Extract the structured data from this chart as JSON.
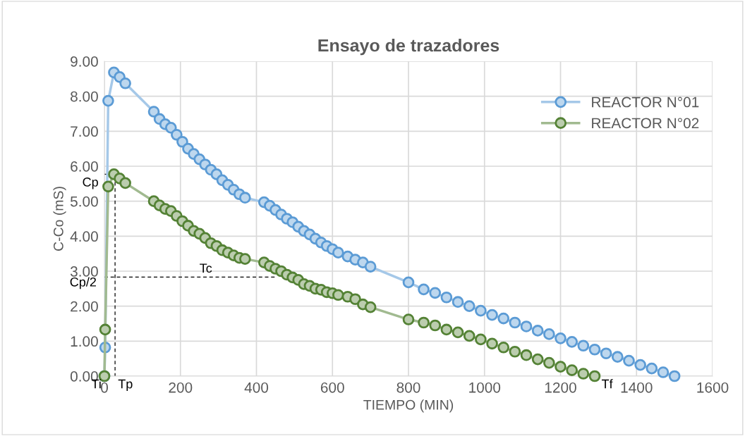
{
  "chart_data": {
    "type": "line",
    "title": "Ensayo de trazadores",
    "xlabel": "TIEMPO (MIN)",
    "ylabel": "C-Co (mS)",
    "xlim": [
      0,
      1600
    ],
    "xticks": [
      0,
      200,
      400,
      600,
      800,
      1000,
      1200,
      1400,
      1600
    ],
    "ylim": [
      0,
      9
    ],
    "yticks": [
      {
        "value": 0,
        "label": "0.00"
      },
      {
        "value": 1,
        "label": "1.00"
      },
      {
        "value": 2,
        "label": "2.00"
      },
      {
        "value": 3,
        "label": "3.00"
      },
      {
        "value": 4,
        "label": "4.00"
      },
      {
        "value": 5,
        "label": "5.00"
      },
      {
        "value": 6,
        "label": "6.00"
      },
      {
        "value": 7,
        "label": "7.00"
      },
      {
        "value": 8,
        "label": "8.00"
      },
      {
        "value": 9,
        "label": "9.00"
      }
    ],
    "grid": true,
    "legend": "top right",
    "marker": "circle",
    "series": [
      {
        "name": "REACTOR N°01",
        "color": "#5b9bd5",
        "x": [
          0,
          2,
          10,
          25,
          40,
          55,
          130,
          145,
          160,
          175,
          190,
          205,
          220,
          235,
          250,
          265,
          280,
          295,
          310,
          325,
          340,
          355,
          370,
          420,
          435,
          450,
          465,
          480,
          495,
          510,
          525,
          540,
          555,
          570,
          585,
          600,
          615,
          640,
          660,
          680,
          700,
          800,
          840,
          870,
          900,
          930,
          960,
          990,
          1020,
          1050,
          1080,
          1110,
          1140,
          1170,
          1200,
          1230,
          1260,
          1290,
          1320,
          1350,
          1380,
          1410,
          1440,
          1470,
          1500
        ],
        "values": [
          0,
          0.82,
          7.87,
          8.68,
          8.55,
          8.37,
          7.56,
          7.35,
          7.2,
          7.1,
          6.9,
          6.7,
          6.5,
          6.35,
          6.2,
          6.05,
          5.9,
          5.77,
          5.6,
          5.47,
          5.33,
          5.2,
          5.1,
          4.97,
          4.87,
          4.75,
          4.62,
          4.5,
          4.4,
          4.27,
          4.15,
          4.05,
          3.93,
          3.82,
          3.72,
          3.63,
          3.53,
          3.42,
          3.33,
          3.25,
          3.13,
          2.68,
          2.48,
          2.38,
          2.25,
          2.12,
          2.0,
          1.87,
          1.75,
          1.65,
          1.53,
          1.42,
          1.3,
          1.2,
          1.08,
          0.98,
          0.87,
          0.76,
          0.65,
          0.55,
          0.44,
          0.32,
          0.22,
          0.11,
          0.0
        ]
      },
      {
        "name": "REACTOR N°02",
        "color": "#548235",
        "x": [
          0,
          2,
          10,
          25,
          40,
          55,
          130,
          145,
          160,
          175,
          190,
          205,
          220,
          235,
          250,
          265,
          280,
          295,
          310,
          325,
          340,
          355,
          370,
          420,
          435,
          450,
          465,
          480,
          495,
          510,
          525,
          540,
          555,
          570,
          585,
          600,
          615,
          640,
          660,
          680,
          700,
          800,
          840,
          870,
          900,
          930,
          960,
          990,
          1020,
          1050,
          1080,
          1110,
          1140,
          1170,
          1200,
          1230,
          1260,
          1290
        ],
        "values": [
          0,
          1.33,
          5.42,
          5.77,
          5.65,
          5.52,
          5.0,
          4.88,
          4.78,
          4.72,
          4.58,
          4.43,
          4.3,
          4.15,
          4.07,
          3.95,
          3.8,
          3.72,
          3.6,
          3.53,
          3.45,
          3.38,
          3.35,
          3.25,
          3.15,
          3.07,
          3.0,
          2.9,
          2.82,
          2.75,
          2.63,
          2.58,
          2.5,
          2.47,
          2.4,
          2.37,
          2.32,
          2.27,
          2.2,
          2.05,
          1.97,
          1.62,
          1.53,
          1.45,
          1.33,
          1.25,
          1.15,
          1.05,
          0.93,
          0.82,
          0.7,
          0.6,
          0.48,
          0.38,
          0.27,
          0.17,
          0.07,
          0.0
        ]
      },
      {
        "type": "line",
        "color": "#000000",
        "line_style": "dashed",
        "marker": "none",
        "x": [
          0,
          28,
          28
        ],
        "values": [
          5.77,
          5.77,
          0
        ]
      },
      {
        "type": "line",
        "color": "#000000",
        "line_style": "dashed",
        "marker": "none",
        "x": [
          0,
          450
        ],
        "values": [
          2.83,
          2.83
        ]
      }
    ],
    "annotations": [
      {
        "text": "Cp",
        "x": 0,
        "y": 5.77
      },
      {
        "text": "Cp/2",
        "x": 0,
        "y": 2.83
      },
      {
        "text": "Tc",
        "x": 250,
        "y": 2.83
      },
      {
        "text": "Tp",
        "x": 28,
        "y": 0
      },
      {
        "text": "Ti",
        "x": 0,
        "y": 0
      },
      {
        "text": "Tf",
        "x": 1300,
        "y": 0
      }
    ]
  }
}
